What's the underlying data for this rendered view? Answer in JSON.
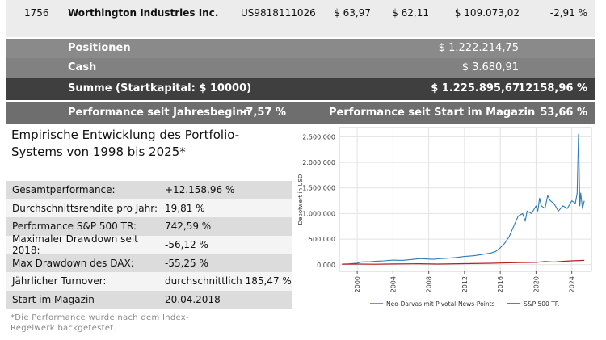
{
  "holding": {
    "rank": "1756",
    "name": "Worthington Industries Inc.",
    "isin": "US9818111026",
    "col1": "$ 63,97",
    "col2": "$ 62,11",
    "col3": "$ 109.073,02",
    "col4": "-2,91 %"
  },
  "summary": {
    "positions_label": "Positionen",
    "positions_value": "$ 1.222.214,75",
    "cash_label": "Cash",
    "cash_value": "$ 3.680,91",
    "total_label": "Summe (Startkapital: $ 10000)",
    "total_value": "$ 1.225.895,67",
    "total_pct": "12158,96 %",
    "perf_ytd_label": "Performance seit Jahresbeginn",
    "perf_ytd_value": "-7,57 %",
    "perf_start_label": "Performance seit Start im Magazin",
    "perf_start_value": "53,66 %"
  },
  "panel": {
    "title": "Empirische Entwicklung des Portfolio-Systems von 1998 bis 2025*",
    "stats": [
      {
        "label": "Gesamtperformance:",
        "value": "+12.158,96 %"
      },
      {
        "label": "Durchschnittsrendite pro Jahr:",
        "value": "19,81 %"
      },
      {
        "label": "Performance S&P 500 TR:",
        "value": "742,59 %"
      },
      {
        "label": "Maximaler Drawdown seit 2018:",
        "value": "-56,12 %"
      },
      {
        "label": "Max Drawdown des DAX:",
        "value": "-55,25 %"
      },
      {
        "label": "Jährlicher Turnover:",
        "value": "durchschnittlich 185,47 %"
      },
      {
        "label": "Start im Magazin",
        "value": "20.04.2018"
      }
    ],
    "footnote": "*Die Performance wurde nach dem Index-Regelwerk backgetestet."
  },
  "chart_data": {
    "type": "line",
    "ylabel": "Depotwert in USD",
    "xlabel": "",
    "xlim": [
      1998,
      2026.2
    ],
    "ylim": [
      -130000,
      2680000
    ],
    "grid": true,
    "legend": "bottom",
    "x_ticks": [
      "2000",
      "2004",
      "2008",
      "2012",
      "2016",
      "2020",
      "2024"
    ],
    "y_ticks": [
      "0.000",
      "500.000",
      "1.000.000",
      "1.500.000",
      "2.000.000",
      "2.500.000"
    ],
    "colors": {
      "neo": "#2b7bba",
      "sp": "#b22222"
    },
    "series": [
      {
        "name": "Neo-Darvas mit Pivotal-News-Points",
        "x": [
          1998.3,
          1999,
          2000,
          2000.5,
          2001.5,
          2002,
          2003,
          2004,
          2005,
          2006,
          2007,
          2008,
          2008.5,
          2009,
          2010,
          2011,
          2012,
          2013,
          2014,
          2015,
          2015.5,
          2016,
          2016.5,
          2017,
          2017.5,
          2018,
          2018.5,
          2018.8,
          2019,
          2019.5,
          2020,
          2020.2,
          2020.4,
          2020.6,
          2021,
          2021.3,
          2021.6,
          2022,
          2022.5,
          2023,
          2023.5,
          2024,
          2024.4,
          2024.6,
          2024.75,
          2024.9,
          2025,
          2025.2,
          2025.4
        ],
        "values": [
          10000,
          15000,
          30000,
          55000,
          60000,
          65000,
          75000,
          90000,
          85000,
          100000,
          120000,
          110000,
          105000,
          115000,
          125000,
          140000,
          160000,
          175000,
          200000,
          230000,
          260000,
          330000,
          420000,
          550000,
          750000,
          950000,
          1000000,
          850000,
          1050000,
          1000000,
          1150000,
          1050000,
          1300000,
          1150000,
          1100000,
          1350000,
          1250000,
          1200000,
          1050000,
          1150000,
          1100000,
          1250000,
          1200000,
          1400000,
          2550000,
          1150000,
          1400000,
          1100000,
          1250000
        ]
      },
      {
        "name": "S&P 500 TR",
        "x": [
          1998.3,
          2000,
          2002,
          2004,
          2007,
          2009,
          2012,
          2015,
          2018,
          2020,
          2021,
          2022,
          2023,
          2024,
          2025.4
        ],
        "values": [
          10000,
          12000,
          9000,
          13000,
          18000,
          12000,
          20000,
          28000,
          40000,
          45000,
          62000,
          52000,
          65000,
          75000,
          85000
        ]
      }
    ]
  }
}
